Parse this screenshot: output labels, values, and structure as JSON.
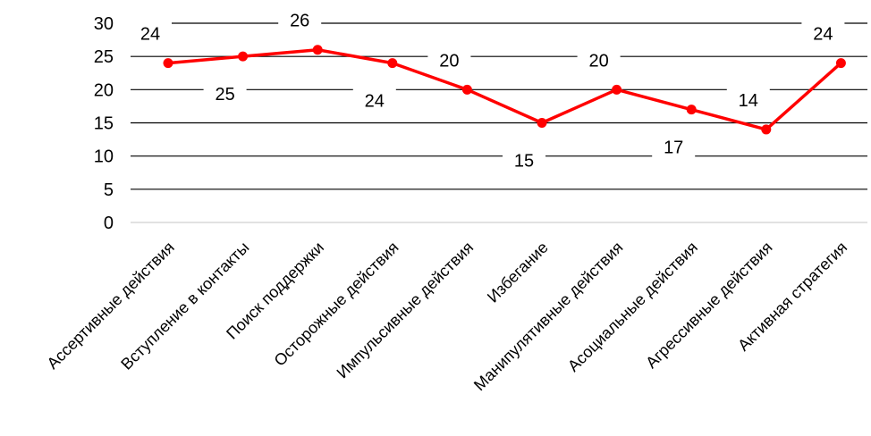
{
  "chart_data": {
    "type": "line",
    "categories": [
      "Ассертивные действия",
      "Вступление в контакты",
      "Поиск поддержки",
      "Осторожные действия",
      "Импульсивные действия",
      "Избегание",
      "Манипулятивные действия",
      "Асоциальные действия",
      "Агрессивные действия",
      "Активная стратегия"
    ],
    "series": [
      {
        "values": [
          24,
          25,
          26,
          24,
          20,
          15,
          20,
          17,
          14,
          24
        ],
        "color": "#ff0000"
      }
    ],
    "ylim": [
      0,
      30
    ],
    "yticks": [
      0,
      5,
      10,
      15,
      20,
      25,
      30
    ],
    "grid": true,
    "legend": "none",
    "colors": {
      "line": "#ff0000",
      "grid": "#000000",
      "axis": "#d9d9d9"
    }
  }
}
